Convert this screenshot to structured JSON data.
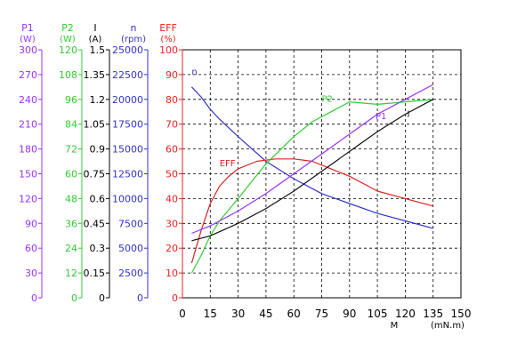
{
  "chart_data": {
    "type": "line",
    "axes": [
      {
        "name": "P1",
        "unit": "(W)",
        "ticks": [
          0,
          30,
          60,
          90,
          120,
          150,
          180,
          210,
          240,
          270,
          300
        ],
        "color": "#9933ff"
      },
      {
        "name": "P2",
        "unit": "(W)",
        "ticks": [
          0,
          12,
          24,
          36,
          48,
          60,
          72,
          84,
          96,
          108,
          120
        ],
        "color": "#33cc33"
      },
      {
        "name": "I",
        "unit": "(A)",
        "ticks": [
          0,
          0.15,
          0.3,
          0.45,
          0.6,
          0.75,
          0.9,
          1.05,
          1.2,
          1.35,
          1.5
        ],
        "color": "#000000"
      },
      {
        "name": "n",
        "unit": "(rpm)",
        "ticks": [
          0,
          2500,
          5000,
          7500,
          10000,
          12500,
          15000,
          17500,
          20000,
          22500,
          25000
        ],
        "color": "#3333cc"
      },
      {
        "name": "EFF",
        "unit": "(%)",
        "ticks": [
          0,
          10,
          20,
          30,
          40,
          50,
          60,
          70,
          80,
          90,
          100
        ],
        "color": "#ee2222"
      }
    ],
    "x": {
      "label": "M",
      "unit": "(mN.m)",
      "ticks": [
        0,
        15,
        30,
        45,
        60,
        75,
        90,
        105,
        120,
        135,
        150
      ],
      "range": [
        0,
        150
      ]
    },
    "y_range": [
      0,
      100
    ],
    "grid": true,
    "series": [
      {
        "name": "n",
        "color": "#3333cc",
        "label_at": [
          5,
          90
        ],
        "values": [
          [
            5,
            85
          ],
          [
            10,
            81
          ],
          [
            15,
            76
          ],
          [
            20,
            72
          ],
          [
            30,
            65
          ],
          [
            45,
            55
          ],
          [
            60,
            48
          ],
          [
            75,
            42
          ],
          [
            90,
            38
          ],
          [
            105,
            34
          ],
          [
            120,
            31
          ],
          [
            135,
            28
          ]
        ]
      },
      {
        "name": "EFF",
        "color": "#dd2222",
        "label_at": [
          20,
          53
        ],
        "values": [
          [
            5,
            14
          ],
          [
            10,
            27
          ],
          [
            15,
            38
          ],
          [
            20,
            45
          ],
          [
            25,
            49
          ],
          [
            30,
            52
          ],
          [
            40,
            55
          ],
          [
            50,
            56
          ],
          [
            60,
            56
          ],
          [
            70,
            55
          ],
          [
            80,
            52
          ],
          [
            90,
            49
          ],
          [
            100,
            45
          ],
          [
            105,
            43
          ],
          [
            120,
            40
          ],
          [
            135,
            37
          ]
        ]
      },
      {
        "name": "P2",
        "color": "#33cc33",
        "label_at": [
          75,
          79
        ],
        "values": [
          [
            5,
            10
          ],
          [
            10,
            17
          ],
          [
            15,
            25
          ],
          [
            20,
            31
          ],
          [
            30,
            40
          ],
          [
            45,
            54
          ],
          [
            60,
            65
          ],
          [
            70,
            71
          ],
          [
            80,
            75
          ],
          [
            90,
            79
          ],
          [
            105,
            78
          ],
          [
            120,
            79
          ],
          [
            135,
            80
          ]
        ]
      },
      {
        "name": "P1",
        "color": "#9933ff",
        "label_at": [
          104,
          72
        ],
        "values": [
          [
            5,
            26
          ],
          [
            15,
            29
          ],
          [
            30,
            35
          ],
          [
            45,
            42
          ],
          [
            60,
            50
          ],
          [
            75,
            58
          ],
          [
            90,
            66
          ],
          [
            105,
            74
          ],
          [
            120,
            80
          ],
          [
            135,
            86
          ]
        ]
      },
      {
        "name": "I",
        "color": "#111111",
        "label_at": [
          121,
          73
        ],
        "values": [
          [
            5,
            23
          ],
          [
            15,
            25
          ],
          [
            30,
            30
          ],
          [
            45,
            36
          ],
          [
            60,
            43
          ],
          [
            75,
            51
          ],
          [
            90,
            59
          ],
          [
            105,
            67
          ],
          [
            120,
            74
          ],
          [
            135,
            80
          ]
        ]
      }
    ]
  }
}
